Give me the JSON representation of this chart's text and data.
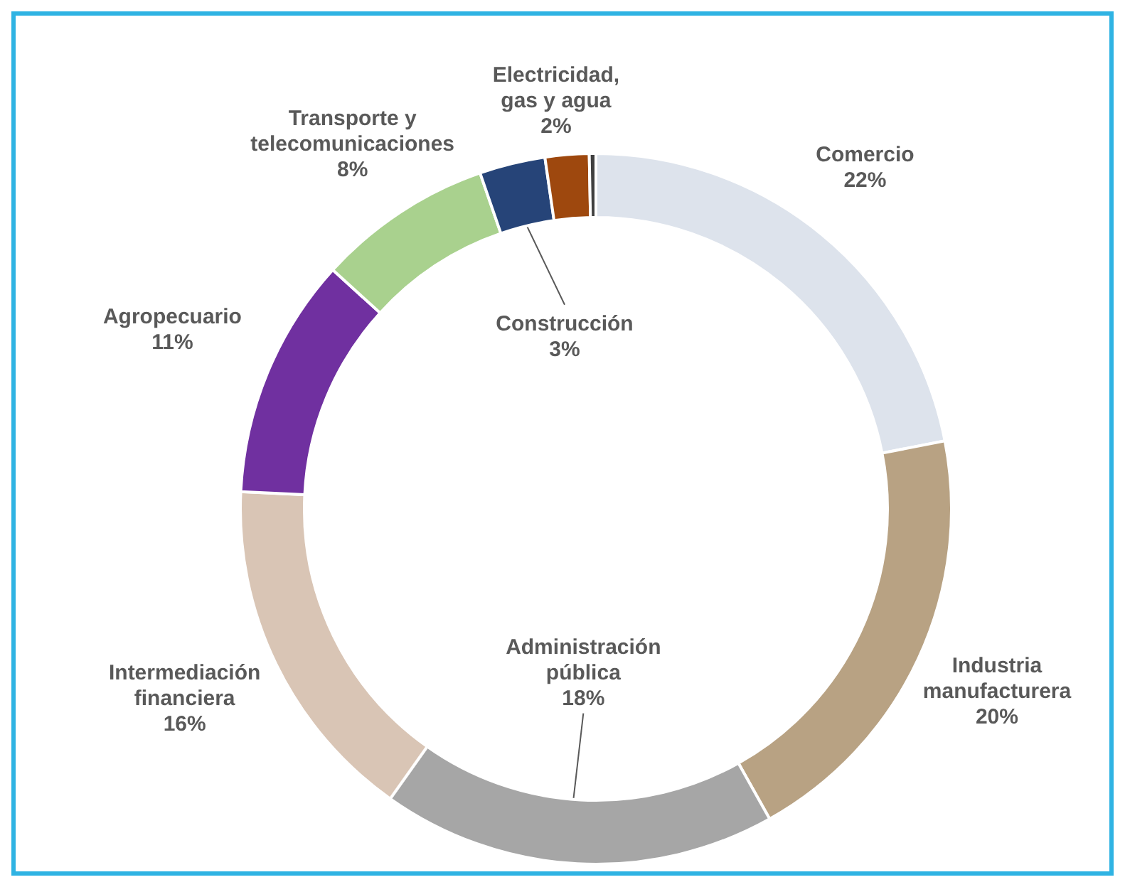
{
  "chart_data": {
    "type": "donut",
    "categories": [
      "Comercio",
      "Industria manufacturera",
      "Administración pública",
      "Intermediación financiera",
      "Agropecuario",
      "Transporte y telecomunicaciones",
      "Construcción",
      "Electricidad, gas y agua",
      null
    ],
    "values": [
      22,
      20,
      18,
      16,
      11,
      8,
      3,
      2,
      0.3
    ],
    "colors": [
      "#dde3ec",
      "#b8a283",
      "#a6a6a6",
      "#d9c5b5",
      "#7030a0",
      "#a9d18e",
      "#264478",
      "#9e480e",
      "#404040"
    ],
    "value_labels": [
      "22%",
      "20%",
      "18%",
      "16%",
      "11%",
      "8%",
      "3%",
      "2%",
      null
    ],
    "legend": false
  }
}
